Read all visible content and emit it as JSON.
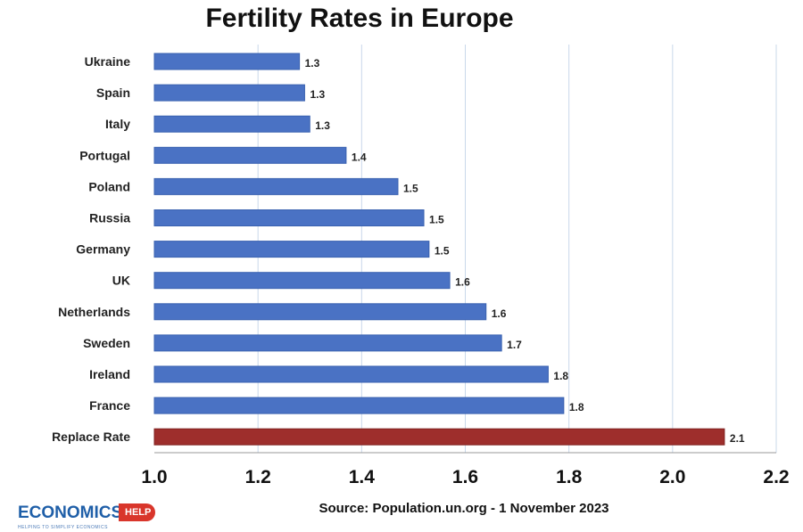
{
  "chart_data": {
    "type": "bar",
    "orientation": "horizontal",
    "title": "Fertility Rates in Europe",
    "source": "Source: Population.un.org - 1 November 2023",
    "categories": [
      "Ukraine",
      "Spain",
      "Italy",
      "Portugal",
      "Poland",
      "Russia",
      "Germany",
      "UK",
      "Netherlands",
      "Sweden",
      "Ireland",
      "France",
      "Replace Rate"
    ],
    "values": [
      1.28,
      1.29,
      1.3,
      1.37,
      1.47,
      1.52,
      1.53,
      1.57,
      1.64,
      1.67,
      1.76,
      1.79,
      2.1
    ],
    "labels": [
      "1.3",
      "1.3",
      "1.3",
      "1.4",
      "1.5",
      "1.5",
      "1.5",
      "1.6",
      "1.6",
      "1.7",
      "1.8",
      "1.8",
      "2.1"
    ],
    "xlim": [
      1.0,
      2.2
    ],
    "xticks": [
      "1.0",
      "1.2",
      "1.4",
      "1.6",
      "1.8",
      "2.0",
      "2.2"
    ],
    "grid": true,
    "colors": {
      "bar": "#4a72c4",
      "bar_edge": "#3a62b0",
      "highlight": "#9e2e2c",
      "grid": "#c9d8ea"
    },
    "highlight_category": "Replace Rate"
  },
  "logo": {
    "word": "ECONOMICS",
    "badge": "HELP",
    "tagline": "HELPING TO SIMPLIFY ECONOMICS"
  }
}
